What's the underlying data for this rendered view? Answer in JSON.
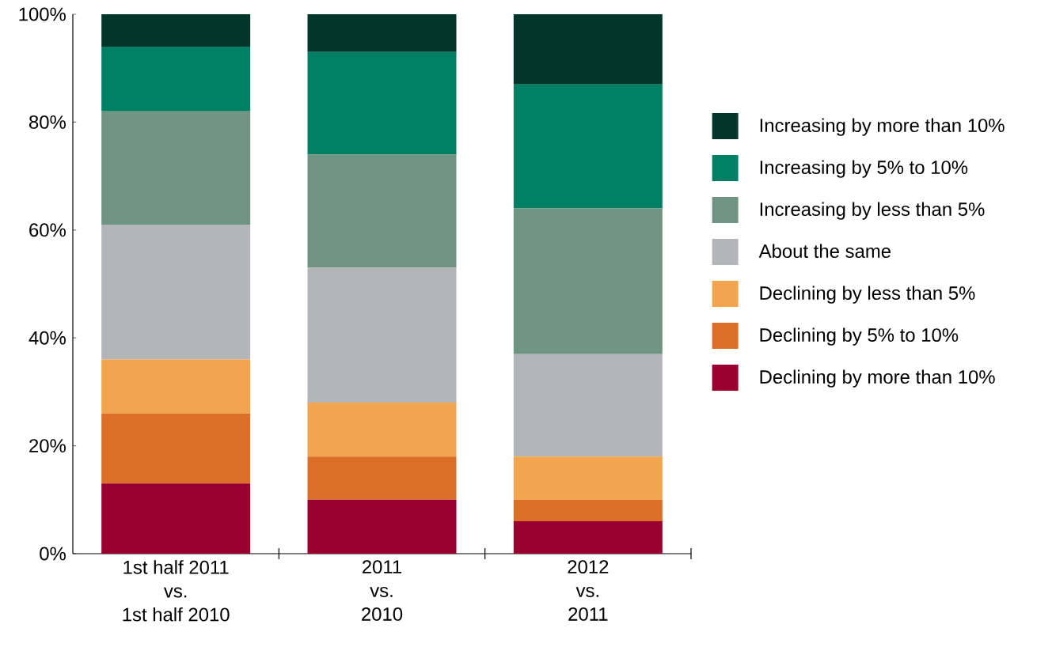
{
  "chart_data": {
    "type": "bar",
    "stacked": true,
    "legend": "right",
    "categories": [
      "1st half 2011\nvs.\n1st half 2010",
      "2011\nvs.\n2010",
      "2012\nvs.\n2011"
    ],
    "ylim": [
      0,
      100
    ],
    "yticks": [
      {
        "value": 0,
        "label": "0%"
      },
      {
        "value": 20,
        "label": "20%"
      },
      {
        "value": 40,
        "label": "40%"
      },
      {
        "value": 60,
        "label": "60%"
      },
      {
        "value": 80,
        "label": "80%"
      },
      {
        "value": 100,
        "label": "100%"
      }
    ],
    "series": [
      {
        "name": "Declining by more than 10%",
        "color": "#990030",
        "values": [
          13,
          10,
          6
        ]
      },
      {
        "name": "Declining by 5% to 10%",
        "color": "#dc6f27",
        "values": [
          13,
          8,
          4
        ]
      },
      {
        "name": "Declining by less than 5%",
        "color": "#f2a54e",
        "values": [
          10,
          10,
          8
        ]
      },
      {
        "name": "About the same",
        "color": "#b4b5b8",
        "values": [
          25,
          25,
          19
        ]
      },
      {
        "name": "Increasing by less than 5%",
        "color": "#6f9484",
        "values": [
          21,
          21,
          27
        ]
      },
      {
        "name": "Increasing by 5% to 10%",
        "color": "#007f65",
        "values": [
          12,
          19,
          23
        ]
      },
      {
        "name": "Increasing by more than 10%",
        "color": "#03362a",
        "values": [
          6,
          7,
          13
        ]
      }
    ]
  }
}
